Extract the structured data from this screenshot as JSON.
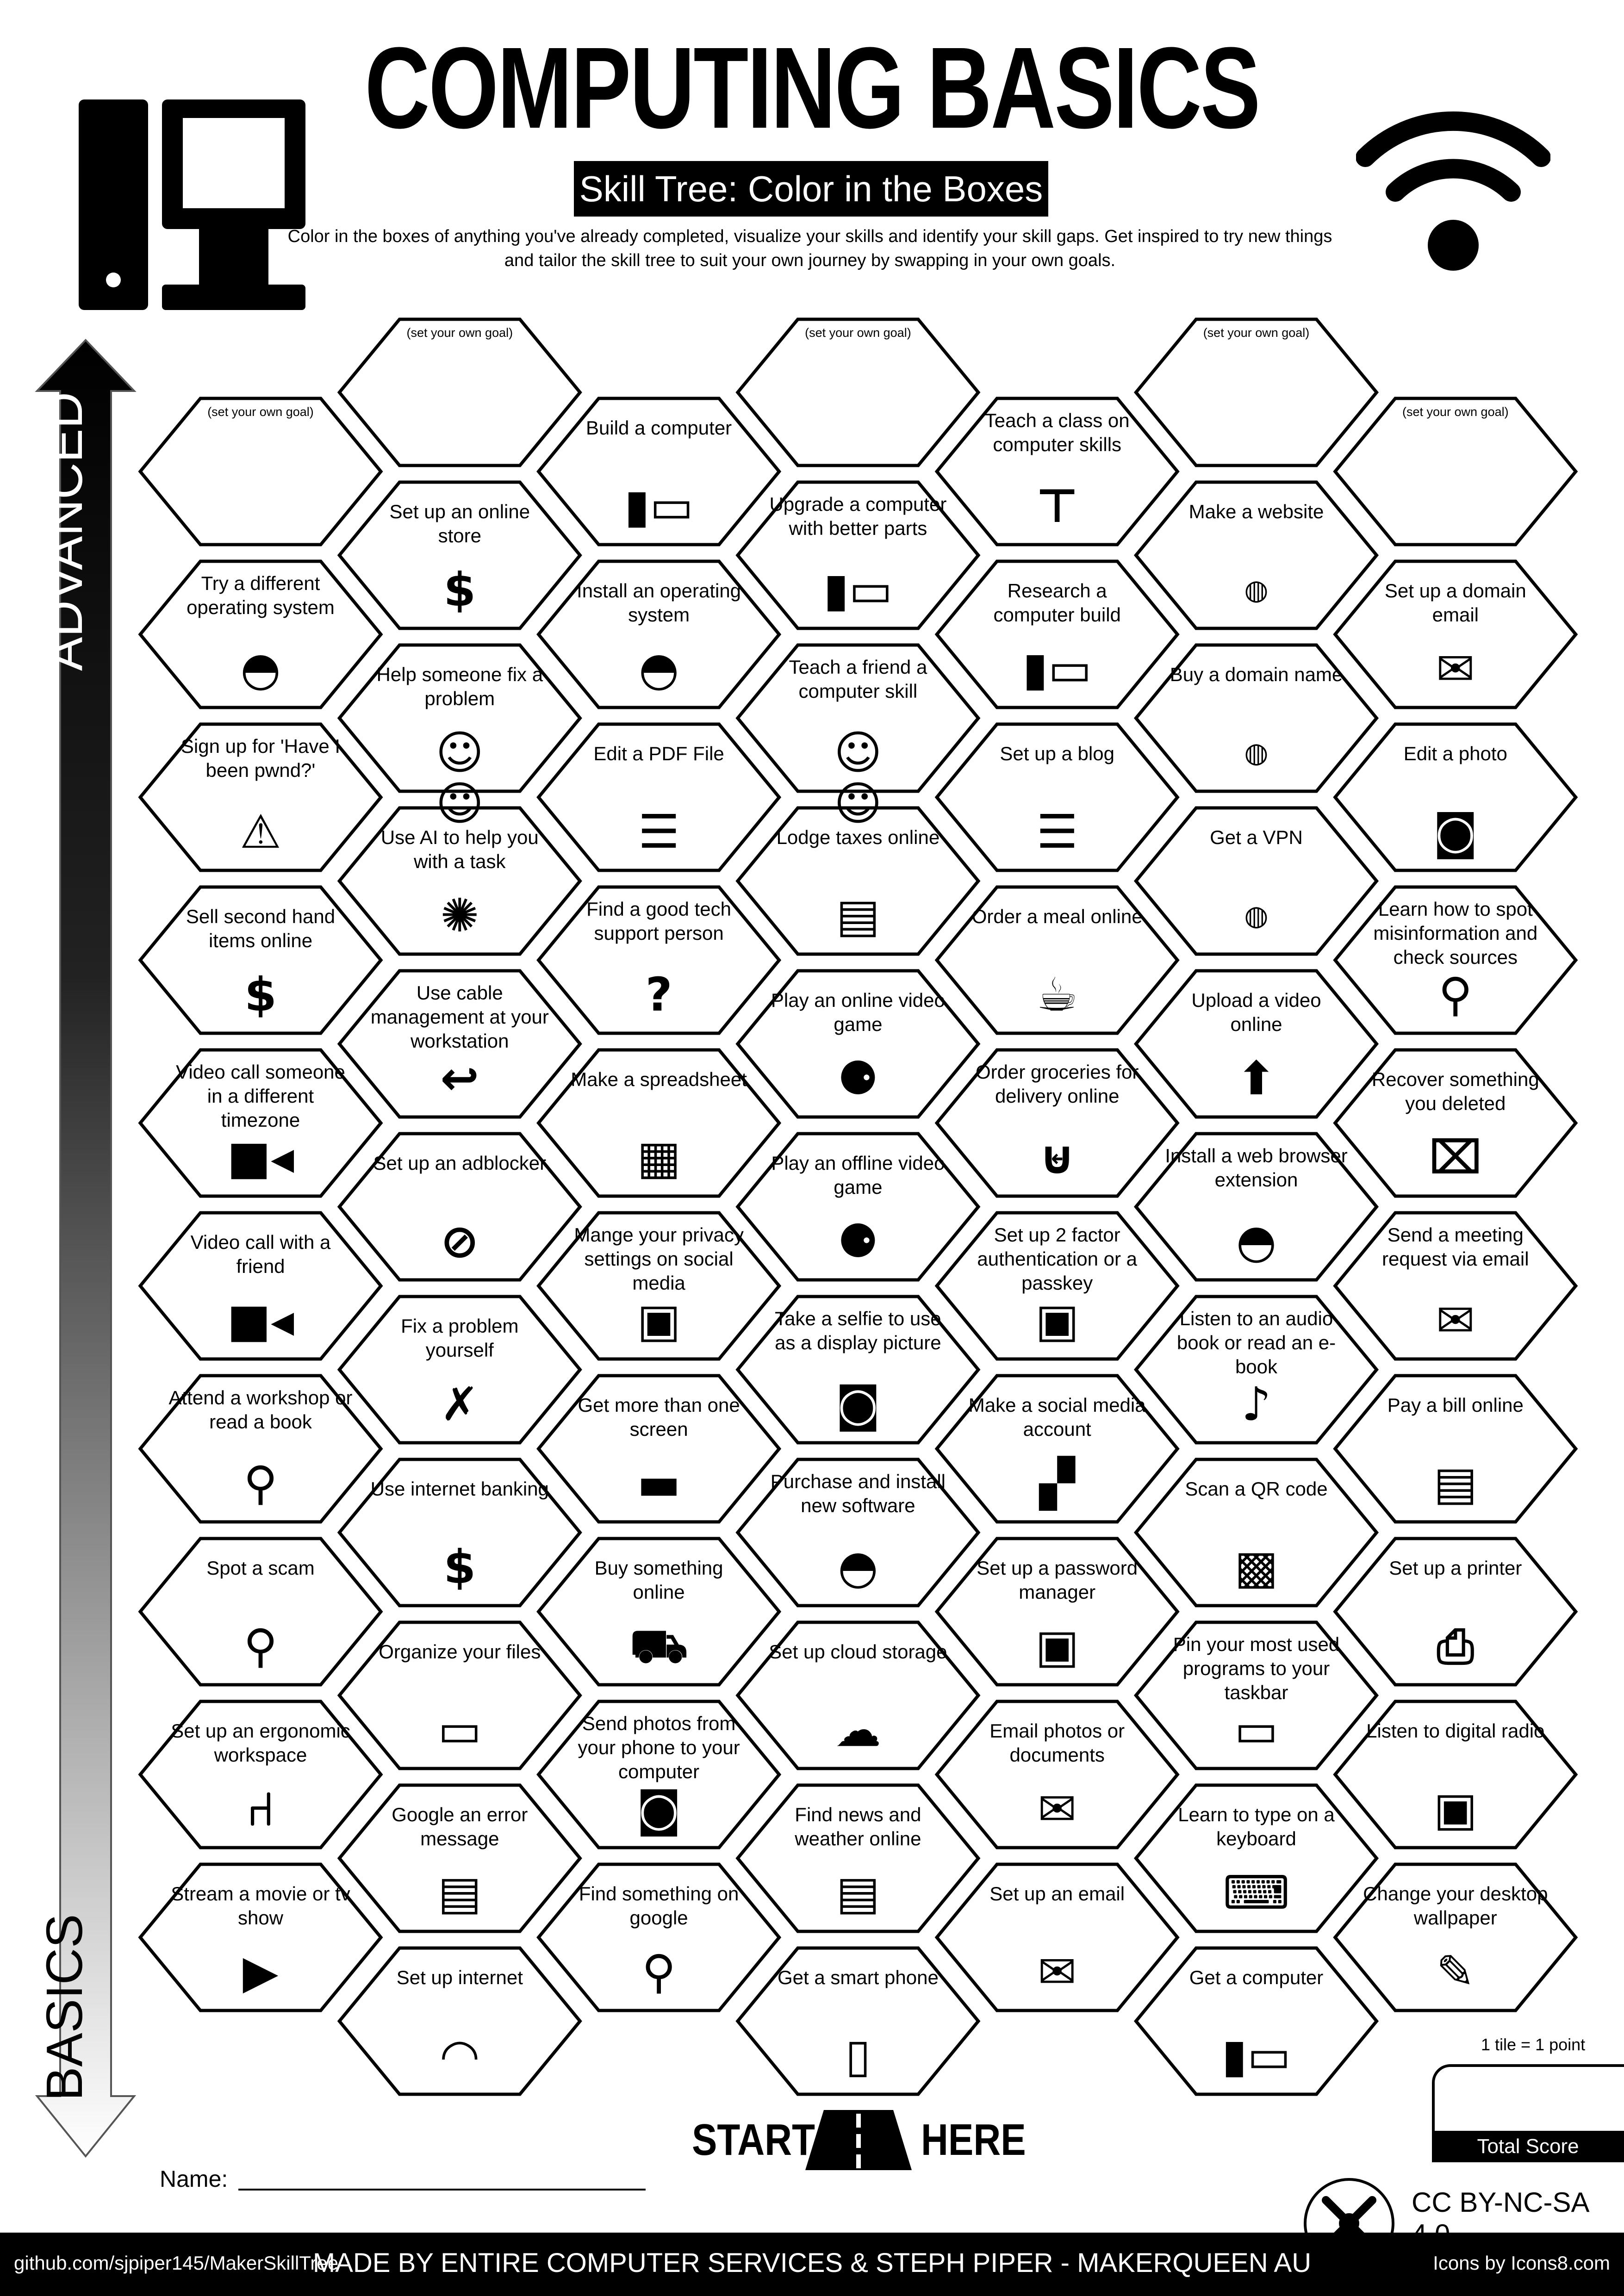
{
  "header": {
    "title": "COMPUTING BASICS",
    "subtitle": "Skill Tree: Color in the Boxes",
    "description": "Color in the boxes of anything you've already completed, visualize your skills and identify your skill gaps.  Get inspired to try new things and tailor the skill tree to suit your own journey by swapping in your own goals.",
    "left_icon": "desktop-computer-icon",
    "right_icon": "wifi-icon"
  },
  "axis": {
    "top_label": "ADVANCED",
    "bottom_label": "BASICS"
  },
  "goal_text": "(set your own goal)",
  "columns": [
    [
      {
        "label": "",
        "goal": true
      },
      {
        "label": "Try a different operating system",
        "icon": "speedometer"
      },
      {
        "label": "Sign up for 'Have I been pwnd?'",
        "icon": "warning"
      },
      {
        "label": "Sell second hand items online",
        "icon": "money-bag"
      },
      {
        "label": "Video call someone in a different timezone",
        "icon": "video-camera"
      },
      {
        "label": "Video call with a friend",
        "icon": "video-camera"
      },
      {
        "label": "Attend a workshop or read a book",
        "icon": "location-pin"
      },
      {
        "label": "Spot a scam",
        "icon": "magnifier"
      },
      {
        "label": "Set up an ergonomic workspace",
        "icon": "office-chair"
      },
      {
        "label": "Stream a movie or tv show",
        "icon": "play"
      }
    ],
    [
      {
        "label": "",
        "goal": true
      },
      {
        "label": "Set up an online store",
        "icon": "money-bag"
      },
      {
        "label": "Help someone fix a problem",
        "icon": "people-computer"
      },
      {
        "label": "Use AI to help you with a task",
        "icon": "brain"
      },
      {
        "label": "Use cable management at your workstation",
        "icon": "cable"
      },
      {
        "label": "Set up an adblocker",
        "icon": "block"
      },
      {
        "label": "Fix a problem yourself",
        "icon": "tools"
      },
      {
        "label": "Use internet banking",
        "icon": "money-bag"
      },
      {
        "label": "Organize your files",
        "icon": "folder"
      },
      {
        "label": "Google an error message",
        "icon": "computer-screen"
      },
      {
        "label": "Set up internet",
        "icon": "wifi"
      }
    ],
    [
      {
        "label": "Build a computer",
        "icon": "desktop-computer"
      },
      {
        "label": "Install an operating system",
        "icon": "speedometer"
      },
      {
        "label": "Edit a PDF File",
        "icon": "document"
      },
      {
        "label": "Find a good tech support person",
        "icon": "support-person"
      },
      {
        "label": "Make a spreadsheet",
        "icon": "table"
      },
      {
        "label": "Mange your privacy settings on social media",
        "icon": "lock"
      },
      {
        "label": "Get more than one screen",
        "icon": "monitor"
      },
      {
        "label": "Buy something online",
        "icon": "cart"
      },
      {
        "label": "Send photos from your phone to your computer",
        "icon": "camera"
      },
      {
        "label": "Find something on google",
        "icon": "magnifier"
      }
    ],
    [
      {
        "label": "",
        "goal": true
      },
      {
        "label": "Upgrade a computer with better parts",
        "icon": "desktop-computer"
      },
      {
        "label": "Teach a friend a computer skill",
        "icon": "people-computer"
      },
      {
        "label": "Lodge taxes online",
        "icon": "tax-form"
      },
      {
        "label": "Play an online video game",
        "icon": "joystick"
      },
      {
        "label": "Play an offline video game",
        "icon": "joystick"
      },
      {
        "label": "Take a selfie to use as a display picture",
        "icon": "camera"
      },
      {
        "label": "Purchase and install new software",
        "icon": "speedometer"
      },
      {
        "label": "Set up cloud storage",
        "icon": "cloud"
      },
      {
        "label": "Find news and weather online",
        "icon": "newspaper"
      },
      {
        "label": "Get a smart phone",
        "icon": "smartphone"
      }
    ],
    [
      {
        "label": "Teach a class on computer skills",
        "icon": "presentation"
      },
      {
        "label": "Research a computer build",
        "icon": "desktop-computer"
      },
      {
        "label": "Set up a blog",
        "icon": "document"
      },
      {
        "label": "Order a meal online",
        "icon": "meal"
      },
      {
        "label": "Order groceries for delivery online",
        "icon": "grocery-basket"
      },
      {
        "label": "Set up 2 factor authentication or a passkey",
        "icon": "lock"
      },
      {
        "label": "Make a social media account",
        "icon": "chat"
      },
      {
        "label": "Set up a password manager",
        "icon": "lock"
      },
      {
        "label": "Email photos or documents",
        "icon": "envelope"
      },
      {
        "label": "Set up an email",
        "icon": "envelope"
      }
    ],
    [
      {
        "label": "",
        "goal": true
      },
      {
        "label": "Make a website",
        "icon": "www"
      },
      {
        "label": "Buy a domain name",
        "icon": "www"
      },
      {
        "label": "Get a VPN",
        "icon": "www"
      },
      {
        "label": "Upload a video online",
        "icon": "upload"
      },
      {
        "label": "Install a web browser extension",
        "icon": "speedometer"
      },
      {
        "label": "Listen to an audio book or read an e-book",
        "icon": "audiobook"
      },
      {
        "label": "Scan a QR code",
        "icon": "qr-code"
      },
      {
        "label": "Pin your most used programs to your taskbar",
        "icon": "taskbar"
      },
      {
        "label": "Learn to type on a keyboard",
        "icon": "keyboard"
      },
      {
        "label": "Get a computer",
        "icon": "desktop-computer"
      }
    ],
    [
      {
        "label": "",
        "goal": true
      },
      {
        "label": "Set up a domain email",
        "icon": "envelope"
      },
      {
        "label": "Edit a photo",
        "icon": "camera"
      },
      {
        "label": "Learn how to spot misinformation and check sources",
        "icon": "magnifier"
      },
      {
        "label": "Recover something you deleted",
        "icon": "trash"
      },
      {
        "label": "Send a meeting request via email",
        "icon": "envelope"
      },
      {
        "label": "Pay a bill online",
        "icon": "tax-form"
      },
      {
        "label": "Set up a printer",
        "icon": "printer"
      },
      {
        "label": "Listen to digital radio",
        "icon": "radio"
      },
      {
        "label": "Change your desktop wallpaper",
        "icon": "edit-screen"
      }
    ]
  ],
  "start": {
    "left": "START",
    "right": "HERE",
    "icon": "road-icon"
  },
  "name_label": "Name:",
  "score": {
    "note": "1 tile = 1 point",
    "label": "Total Score"
  },
  "license": "CC BY-NC-SA 4.0",
  "footer": {
    "left": "github.com/sjpiper145/MakerSkillTree",
    "center": "MADE BY ENTIRE COMPUTER SERVICES & STEPH PIPER  -  MAKERQUEEN AU",
    "right": "Icons by Icons8.com"
  }
}
